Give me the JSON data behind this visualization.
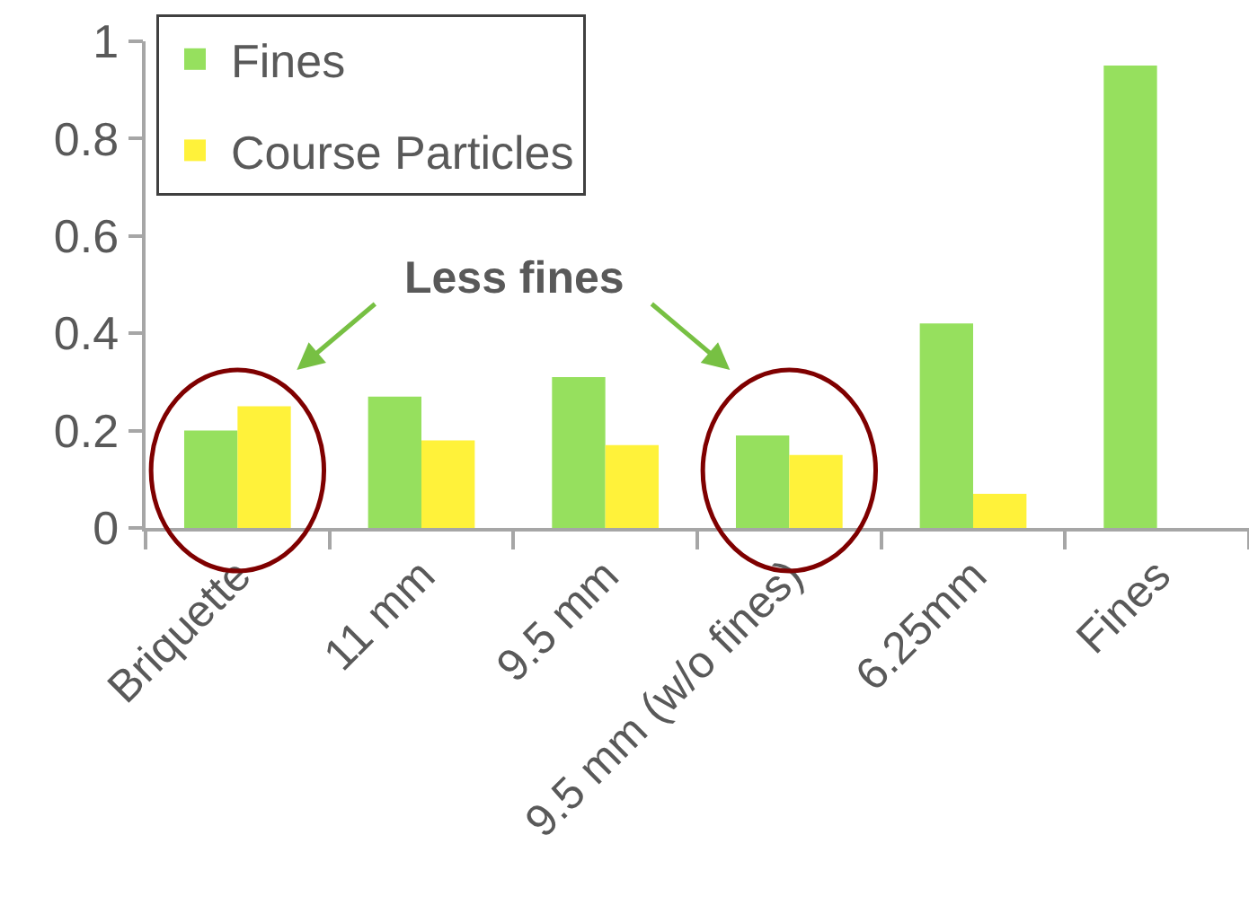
{
  "chart_data": {
    "type": "bar",
    "categories": [
      "Briquette",
      "11 mm",
      "9.5 mm",
      "9.5 mm (w/o fines)",
      "6.25mm",
      "Fines"
    ],
    "series": [
      {
        "name": "Fines",
        "color": "#96e05e",
        "values": [
          0.2,
          0.27,
          0.31,
          0.19,
          0.42,
          0.95
        ]
      },
      {
        "name": "Course Particles",
        "color": "#fff23a",
        "values": [
          0.25,
          0.18,
          0.17,
          0.15,
          0.07,
          null
        ]
      }
    ],
    "ylim": [
      0,
      1
    ],
    "yticks": [
      0,
      0.2,
      0.4,
      0.6,
      0.8,
      1
    ],
    "grid": false,
    "legend": "top left",
    "annotations": [
      "Less fines"
    ]
  }
}
